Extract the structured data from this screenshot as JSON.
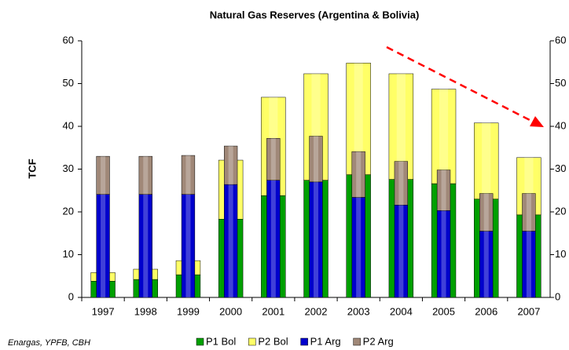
{
  "chart_data": {
    "type": "stacked-bar",
    "title": "Natural Gas Reserves (Argentina & Bolivia)",
    "ylabel": "TCF",
    "source": "Enargas, YPFB, CBH",
    "categories": [
      "1997",
      "1998",
      "1999",
      "2000",
      "2001",
      "2002",
      "2003",
      "2004",
      "2005",
      "2006",
      "2007"
    ],
    "series": [
      {
        "name": "P1 Bol",
        "color": "#00a000",
        "stack": 1,
        "values": [
          3.8,
          4.2,
          5.3,
          18.3,
          23.8,
          27.4,
          28.7,
          27.6,
          26.6,
          23.0,
          19.3
        ]
      },
      {
        "name": "P2 Bol",
        "color": "#ffff66",
        "stack": 1,
        "values": [
          2.0,
          2.4,
          3.3,
          13.8,
          23.0,
          24.9,
          26.1,
          24.7,
          22.1,
          17.8,
          13.4
        ]
      },
      {
        "name": "P1 Arg",
        "color": "#0000cc",
        "stack": 2,
        "values": [
          24.1,
          24.1,
          24.1,
          26.4,
          27.4,
          27.0,
          23.4,
          21.6,
          20.3,
          15.5,
          15.5
        ]
      },
      {
        "name": "P2 Arg",
        "color": "#a08878",
        "stack": 2,
        "values": [
          8.9,
          8.9,
          9.1,
          9.0,
          9.8,
          10.7,
          10.7,
          10.2,
          9.5,
          8.8,
          8.8
        ]
      }
    ],
    "ylim": [
      0,
      60
    ],
    "yticks": [
      0,
      10,
      20,
      30,
      40,
      50,
      60
    ],
    "y2lim": [
      0,
      60
    ],
    "y2ticks": [
      0,
      10,
      20,
      30,
      40,
      50,
      60
    ],
    "grid": false,
    "legend": "bottom"
  }
}
